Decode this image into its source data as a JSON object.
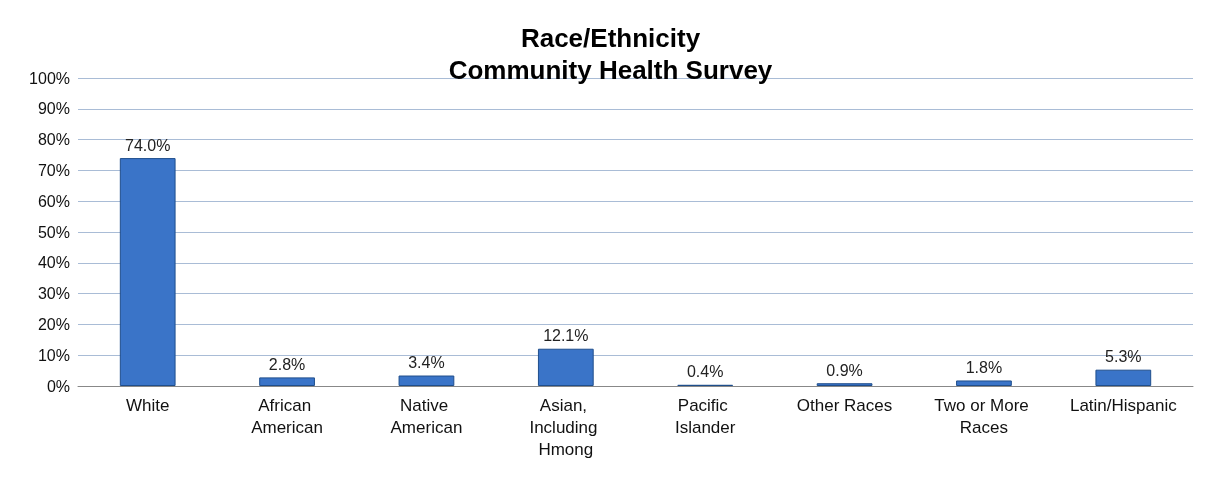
{
  "chart_data": {
    "type": "bar",
    "title": "Race/Ethnicity",
    "subtitle": "Community Health Survey",
    "categories": [
      "White",
      "African American",
      "Native American",
      "Asian, Including Hmong",
      "Pacific Islander",
      "Other Races",
      "Two or More Races",
      "Latin/Hispanic"
    ],
    "values": [
      74.0,
      2.8,
      3.4,
      12.1,
      0.4,
      0.9,
      1.8,
      5.3
    ],
    "value_labels": [
      "74.0%",
      "2.8%",
      "3.4%",
      "12.1%",
      "0.4%",
      "0.9%",
      "1.8%",
      "5.3%"
    ],
    "color": "#3a74c8",
    "ylim": [
      0,
      100
    ],
    "yticks": [
      {
        "value": 0,
        "label": "0%"
      },
      {
        "value": 10,
        "label": "10%"
      },
      {
        "value": 20,
        "label": "20%"
      },
      {
        "value": 30,
        "label": "30%"
      },
      {
        "value": 40,
        "label": "40%"
      },
      {
        "value": 50,
        "label": "50%"
      },
      {
        "value": 60,
        "label": "60%"
      },
      {
        "value": 70,
        "label": "70%"
      },
      {
        "value": 80,
        "label": "80%"
      },
      {
        "value": 90,
        "label": "90%"
      },
      {
        "value": 100,
        "label": "100%"
      }
    ],
    "grid": "y"
  }
}
